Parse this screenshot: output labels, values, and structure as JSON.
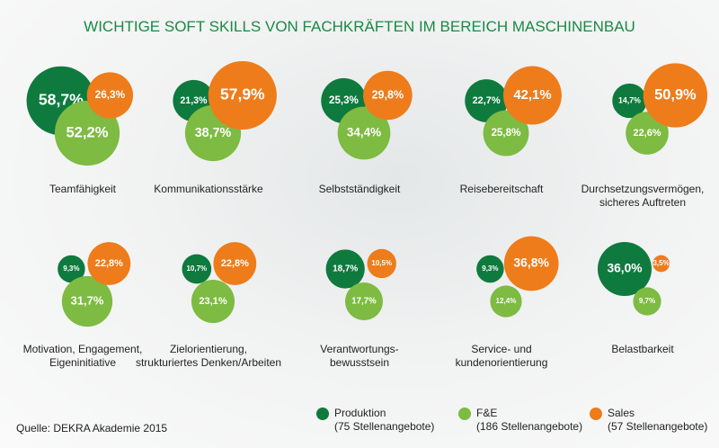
{
  "chart_data": {
    "type": "bubble",
    "title": "WICHTIGE SOFT SKILLS VON FACHKRÄFTEN IM BEREICH MASCHINENBAU",
    "source": "Quelle: DEKRA Akademie 2015",
    "categories": [
      "Teamfähigkeit",
      "Kommunikationsstärke",
      "Selbstständigkeit",
      "Reisebereitschaft",
      "Durchsetzungsvermögen,\nsicheres Auftreten",
      "Motivation, Engagement,\nEigeninitiative",
      "Zielorientierung,\nstrukturiertes Denken/Arbeiten",
      "Verantwortungs-\nbewusstsein",
      "Service- und\nkundenorientierung",
      "Belastbarkeit"
    ],
    "series": [
      {
        "name": "Produktion",
        "offers": "(75 Stellenangebote)",
        "color": "#0f7a3e",
        "values": [
          58.7,
          21.3,
          25.3,
          22.7,
          14.7,
          9.3,
          10.7,
          18.7,
          9.3,
          36.0
        ],
        "value_labels": [
          "58,7%",
          "21,3%",
          "25,3%",
          "22,7%",
          "14,7%",
          "9,3%",
          "10,7%",
          "18,7%",
          "9,3%",
          "36,0%"
        ]
      },
      {
        "name": "F&E",
        "offers": "(186 Stellenangebote)",
        "color": "#7dbb42",
        "values": [
          52.2,
          38.7,
          34.4,
          25.8,
          22.6,
          31.7,
          23.1,
          17.7,
          12.4,
          9.7
        ],
        "value_labels": [
          "52,2%",
          "38,7%",
          "34,4%",
          "25,8%",
          "22,6%",
          "31,7%",
          "23,1%",
          "17,7%",
          "12,4%",
          "9,7%"
        ]
      },
      {
        "name": "Sales",
        "offers": "(57 Stellenangebote)",
        "color": "#ee7c1b",
        "values": [
          26.3,
          57.9,
          29.8,
          42.1,
          50.9,
          22.8,
          22.8,
          10.5,
          36.8,
          3.5
        ],
        "value_labels": [
          "26,3%",
          "57,9%",
          "29,8%",
          "42,1%",
          "50,9%",
          "22,8%",
          "22,8%",
          "10,5%",
          "36,8%",
          "3,5%"
        ]
      }
    ]
  }
}
